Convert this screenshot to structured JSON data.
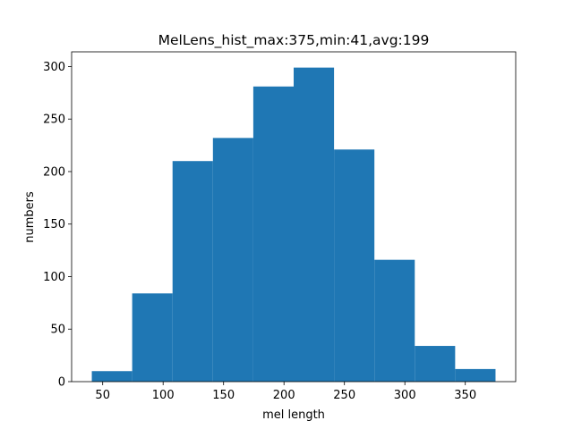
{
  "chart_data": {
    "type": "bar",
    "title": "MelLens_hist_max:375,min:41,avg:199",
    "xlabel": "mel length",
    "ylabel": "numbers",
    "bin_edges": [
      41,
      74.4,
      107.8,
      141.2,
      174.6,
      208,
      241.4,
      274.8,
      308.2,
      341.6,
      375
    ],
    "values": [
      10,
      84,
      210,
      232,
      281,
      299,
      221,
      116,
      34,
      12
    ],
    "xlim": [
      24.3,
      391.7
    ],
    "ylim": [
      0,
      314
    ],
    "xticks": [
      50,
      100,
      150,
      200,
      250,
      300,
      350
    ],
    "yticks": [
      0,
      50,
      100,
      150,
      200,
      250,
      300
    ],
    "bar_color": "#1f77b4",
    "grid": false
  }
}
